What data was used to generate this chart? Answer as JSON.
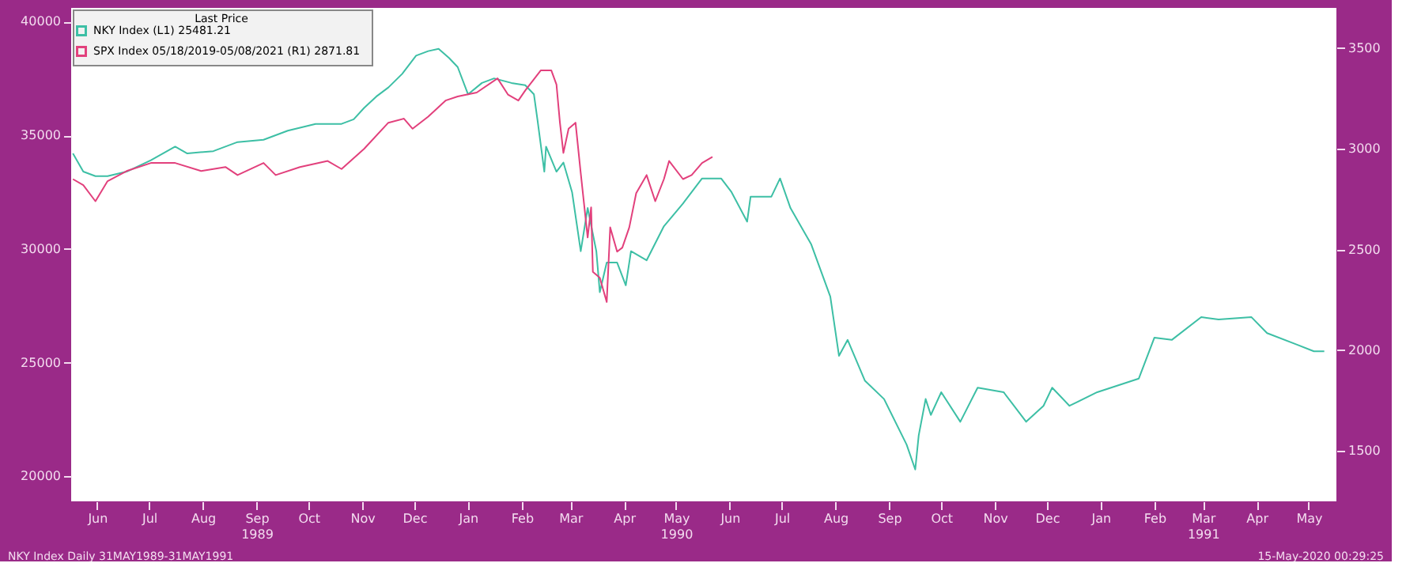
{
  "chart_data": {
    "type": "line",
    "legend_title": "Last Price",
    "legend": "top left",
    "grid": false,
    "marker": "none",
    "line_style": "solid",
    "xlim": [
      "1989-05-31",
      "1991-05-31"
    ],
    "xticks": [
      {
        "value": "1989-06-15",
        "label": "Jun"
      },
      {
        "value": "1989-07-15",
        "label": "Jul"
      },
      {
        "value": "1989-08-15",
        "label": "Aug"
      },
      {
        "value": "1989-09-15",
        "label": "Sep\n1989"
      },
      {
        "value": "1989-10-15",
        "label": "Oct"
      },
      {
        "value": "1989-11-15",
        "label": "Nov"
      },
      {
        "value": "1989-12-15",
        "label": "Dec"
      },
      {
        "value": "1990-01-15",
        "label": "Jan"
      },
      {
        "value": "1990-02-15",
        "label": "Feb"
      },
      {
        "value": "1990-03-15",
        "label": "Mar"
      },
      {
        "value": "1990-04-15",
        "label": "Apr"
      },
      {
        "value": "1990-05-15",
        "label": "May\n1990"
      },
      {
        "value": "1990-06-15",
        "label": "Jun"
      },
      {
        "value": "1990-07-15",
        "label": "Jul"
      },
      {
        "value": "1990-08-15",
        "label": "Aug"
      },
      {
        "value": "1990-09-15",
        "label": "Sep"
      },
      {
        "value": "1990-10-15",
        "label": "Oct"
      },
      {
        "value": "1990-11-15",
        "label": "Nov"
      },
      {
        "value": "1990-12-15",
        "label": "Dec"
      },
      {
        "value": "1991-01-15",
        "label": "Jan"
      },
      {
        "value": "1991-02-15",
        "label": "Feb"
      },
      {
        "value": "1991-03-15",
        "label": "Mar\n1991"
      },
      {
        "value": "1991-04-15",
        "label": "Apr"
      },
      {
        "value": "1991-05-15",
        "label": "May"
      }
    ],
    "ylim": [
      18900,
      40600
    ],
    "yticks": [
      20000,
      25000,
      30000,
      35000,
      40000
    ],
    "y2lim": [
      1250,
      3700
    ],
    "y2ticks": [
      1500,
      2000,
      2500,
      3000,
      3500
    ],
    "annotations": [
      "NKY Index  Daily 31MAY1989-31MAY1991",
      "15-May-2020 00:29:25"
    ],
    "series": [
      {
        "name": "NKY Index  (L1)  25481.21",
        "color": "#3dbfa5",
        "axis": "y",
        "x": [
          "1989-06-01",
          "1989-06-07",
          "1989-06-14",
          "1989-06-21",
          "1989-07-02",
          "1989-07-16",
          "1989-07-30",
          "1989-08-06",
          "1989-08-21",
          "1989-09-04",
          "1989-09-19",
          "1989-10-03",
          "1989-10-19",
          "1989-11-03",
          "1989-11-10",
          "1989-11-16",
          "1989-11-23",
          "1989-11-30",
          "1989-12-08",
          "1989-12-16",
          "1989-12-23",
          "1989-12-29",
          "1990-01-04",
          "1990-01-09",
          "1990-01-15",
          "1990-01-23",
          "1990-01-30",
          "1990-02-09",
          "1990-02-17",
          "1990-02-22",
          "1990-02-24",
          "1990-02-28",
          "1990-03-01",
          "1990-03-07",
          "1990-03-11",
          "1990-03-16",
          "1990-03-21",
          "1990-03-25",
          "1990-03-30",
          "1990-04-01",
          "1990-04-05",
          "1990-04-11",
          "1990-04-16",
          "1990-04-19",
          "1990-04-28",
          "1990-05-08",
          "1990-05-19",
          "1990-05-30",
          "1990-06-10",
          "1990-06-16",
          "1990-06-25",
          "1990-06-27",
          "1990-07-09",
          "1990-07-14",
          "1990-07-20",
          "1990-08-01",
          "1990-08-12",
          "1990-08-17",
          "1990-08-22",
          "1990-09-01",
          "1990-09-12",
          "1990-09-25",
          "1990-09-30",
          "1990-10-02",
          "1990-10-06",
          "1990-10-09",
          "1990-10-15",
          "1990-10-26",
          "1990-11-05",
          "1990-11-20",
          "1990-12-03",
          "1990-12-13",
          "1990-12-18",
          "1990-12-28",
          "1991-01-13",
          "1991-02-06",
          "1991-02-15",
          "1991-02-25",
          "1991-03-14",
          "1991-03-24",
          "1991-04-12",
          "1991-04-21",
          "1991-05-08",
          "1991-05-18",
          "1991-05-24"
        ],
        "values": [
          34200,
          33400,
          33200,
          33200,
          33400,
          33900,
          34500,
          34200,
          34300,
          34700,
          34800,
          35200,
          35500,
          35500,
          35700,
          36200,
          36700,
          37100,
          37700,
          38500,
          38700,
          38800,
          38400,
          38000,
          36800,
          37300,
          37500,
          37300,
          37200,
          36800,
          35700,
          33400,
          34500,
          33400,
          33800,
          32500,
          29900,
          31800,
          29900,
          28100,
          29400,
          29400,
          28400,
          29900,
          29500,
          31000,
          32000,
          33100,
          33100,
          32500,
          31200,
          32300,
          32300,
          33100,
          31800,
          30200,
          27900,
          25300,
          26000,
          24200,
          23400,
          21400,
          20300,
          21800,
          23400,
          22700,
          23700,
          22400,
          23900,
          23700,
          22400,
          23100,
          23900,
          23100,
          23700,
          24300,
          26100,
          26000,
          27000,
          26900,
          27000,
          26300,
          25800,
          25500,
          25500
        ]
      },
      {
        "name": "SPX Index 05/18/2019-05/08/2021  (R1)  2871.81",
        "color": "#e2407c",
        "axis": "y2",
        "x": [
          "1989-06-01",
          "1989-06-07",
          "1989-06-14",
          "1989-06-21",
          "1989-07-02",
          "1989-07-16",
          "1989-07-30",
          "1989-08-14",
          "1989-08-28",
          "1989-09-04",
          "1989-09-19",
          "1989-09-26",
          "1989-10-10",
          "1989-10-26",
          "1989-11-03",
          "1989-11-16",
          "1989-11-30",
          "1989-12-09",
          "1989-12-14",
          "1989-12-23",
          "1990-01-02",
          "1990-01-09",
          "1990-01-20",
          "1990-02-01",
          "1990-02-07",
          "1990-02-13",
          "1990-02-17",
          "1990-02-26",
          "1990-03-04",
          "1990-03-07",
          "1990-03-09",
          "1990-03-11",
          "1990-03-14",
          "1990-03-18",
          "1990-03-21",
          "1990-03-25",
          "1990-03-27",
          "1990-03-28",
          "1990-04-01",
          "1990-04-05",
          "1990-04-07",
          "1990-04-11",
          "1990-04-14",
          "1990-04-18",
          "1990-04-22",
          "1990-04-28",
          "1990-05-03",
          "1990-05-08",
          "1990-05-11",
          "1990-05-19",
          "1990-05-24",
          "1990-05-30",
          "1990-06-05"
        ],
        "values": [
          2850,
          2820,
          2740,
          2840,
          2890,
          2930,
          2930,
          2890,
          2910,
          2870,
          2930,
          2870,
          2910,
          2940,
          2900,
          3000,
          3130,
          3150,
          3100,
          3160,
          3240,
          3260,
          3280,
          3350,
          3270,
          3240,
          3290,
          3390,
          3390,
          3320,
          3130,
          2980,
          3100,
          3130,
          2880,
          2560,
          2710,
          2390,
          2360,
          2240,
          2610,
          2490,
          2510,
          2610,
          2780,
          2870,
          2740,
          2850,
          2940,
          2850,
          2870,
          2930,
          2960
        ]
      }
    ]
  }
}
